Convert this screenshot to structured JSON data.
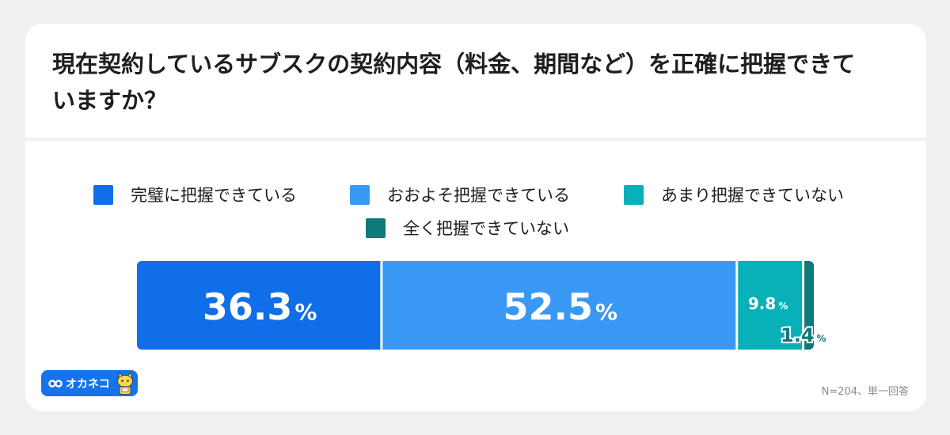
{
  "chart_data": {
    "type": "bar",
    "orientation": "horizontal-stacked-100",
    "title": "現在契約しているサブスクの契約内容（料金、期間など）を正確に把握できていますか？",
    "series": [
      {
        "name": "完璧に把握できている",
        "value": 36.3,
        "label": "36.3",
        "color": "#0f6ee8"
      },
      {
        "name": "おおよそ把握できている",
        "value": 52.5,
        "label": "52.5",
        "color": "#3a98f5"
      },
      {
        "name": "あまり把握できていない",
        "value": 9.8,
        "label": "9.8",
        "color": "#08b0b7"
      },
      {
        "name": "全く把握できていない",
        "value": 1.4,
        "label": "1.4",
        "color": "#0e7a7a"
      }
    ],
    "unit": "%",
    "legend_position": "top-center",
    "note": "N=204、単一回答"
  },
  "brand": {
    "name": "オカネコ",
    "color": "#1673ea"
  }
}
